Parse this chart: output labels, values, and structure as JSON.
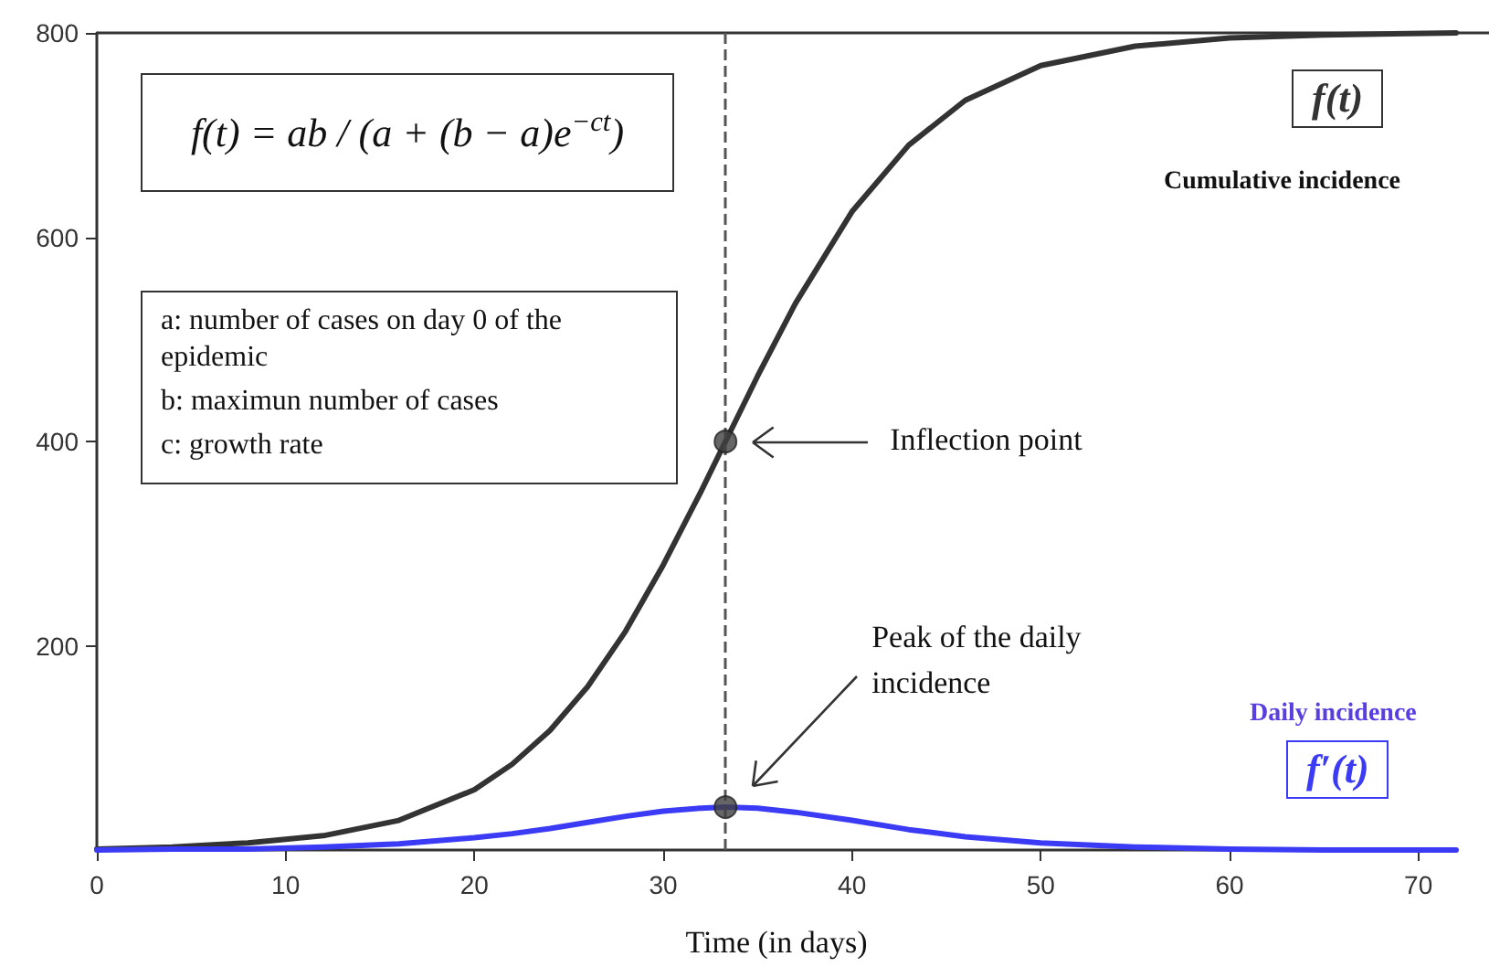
{
  "chart_data": {
    "type": "line",
    "xlabel": "Time (in days)",
    "x": [
      0,
      4,
      8,
      12,
      16,
      20,
      22,
      24,
      26,
      28,
      30,
      32,
      33.3,
      35,
      37,
      40,
      43,
      46,
      50,
      55,
      60,
      65,
      72
    ],
    "series": [
      {
        "name": "Cumulative incidence",
        "color": "#333333",
        "values": [
          1,
          3,
          7,
          14,
          29,
          59,
          84,
          117,
          160,
          214,
          279,
          351,
          400,
          464,
          535,
          625,
          690,
          734,
          768,
          787,
          795,
          798,
          800
        ]
      },
      {
        "name": "Daily incidence",
        "color": "#3b3bf5",
        "values": [
          0,
          1,
          1,
          3,
          6,
          12,
          16,
          21,
          27,
          33,
          38,
          41,
          42,
          41,
          37,
          29,
          20,
          13,
          7,
          3,
          1,
          0,
          0
        ]
      },
      {
        "type": "scatter",
        "color": "#404040",
        "marker": "circle",
        "x": [
          33.3,
          33.3
        ],
        "values": [
          400,
          42
        ]
      }
    ],
    "marker": "none",
    "xlim": [
      0,
      72
    ],
    "xticks": [
      0,
      10,
      20,
      30,
      40,
      50,
      60,
      70
    ],
    "ylim": [
      0,
      800
    ],
    "yticks": [
      200,
      400,
      600,
      800
    ],
    "grid": false,
    "legend": false,
    "ref_lines": [
      {
        "axis": "x",
        "value": 33.3,
        "color": "#555555",
        "line_style": "dashed"
      }
    ],
    "annotations": [
      "f(t) = ab / (a + (b − a)e$^{−ct}$)",
      "a: number of cases on day 0 of the epidemic",
      "b: maximun number of cases",
      "c: growth rate",
      "f(t)",
      "f′(t)",
      "Inflection point",
      "Peak of the daily incidence"
    ]
  }
}
